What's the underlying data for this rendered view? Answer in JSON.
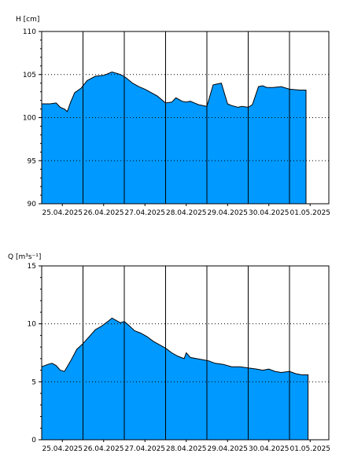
{
  "chart_data": [
    {
      "type": "area",
      "ylabel": "H [cm]",
      "ylim": [
        90,
        110
      ],
      "yticks": [
        90,
        95,
        100,
        105,
        110
      ],
      "x_tick_labels": [
        "25.04.2025",
        "26.04.2025",
        "27.04.2025",
        "28.04.2025",
        "29.04.2025",
        "30.04.2025",
        "01.05.2025"
      ],
      "grid": true,
      "fill_color": "#0099ff",
      "series": [
        {
          "x": [
            0,
            0.2,
            0.35,
            0.45,
            0.55,
            0.62,
            0.7,
            0.8,
            0.95,
            1.1,
            1.3,
            1.5,
            1.7,
            1.85,
            1.95,
            2.05,
            2.2,
            2.35,
            2.5,
            2.65,
            2.8,
            3.0,
            3.15,
            3.25,
            3.4,
            3.5,
            3.6,
            3.7,
            3.8,
            4.0,
            4.15,
            4.25,
            4.35,
            4.5,
            4.6,
            4.75,
            4.85,
            5.0,
            5.1,
            5.25,
            5.35,
            5.45,
            5.6,
            5.8,
            6.0,
            6.25,
            6.4
          ],
          "values": [
            101.6,
            101.6,
            101.7,
            101.2,
            101.0,
            100.7,
            101.8,
            102.9,
            103.4,
            104.3,
            104.8,
            104.9,
            105.3,
            105.1,
            104.9,
            104.6,
            104.0,
            103.6,
            103.3,
            102.9,
            102.5,
            101.7,
            101.8,
            102.3,
            101.9,
            101.8,
            101.9,
            101.7,
            101.5,
            101.3,
            103.8,
            103.9,
            104.0,
            101.6,
            101.4,
            101.2,
            101.3,
            101.2,
            101.5,
            103.6,
            103.7,
            103.5,
            103.5,
            103.6,
            103.3,
            103.2,
            103.2
          ]
        }
      ]
    },
    {
      "type": "area",
      "ylabel": "Q [m³s⁻¹]",
      "ylim": [
        0,
        15
      ],
      "yticks": [
        0,
        5,
        10,
        15
      ],
      "x_tick_labels": [
        "25.04.2025",
        "26.04.2025",
        "27.04.2025",
        "28.04.2025",
        "29.04.2025",
        "30.04.2025",
        "01.05.2025"
      ],
      "grid": true,
      "fill_color": "#0099ff",
      "series": [
        {
          "x": [
            0,
            0.15,
            0.25,
            0.35,
            0.45,
            0.55,
            0.7,
            0.85,
            1.0,
            1.15,
            1.3,
            1.45,
            1.6,
            1.7,
            1.8,
            1.9,
            2.0,
            2.1,
            2.25,
            2.4,
            2.55,
            2.7,
            2.85,
            3.0,
            3.15,
            3.3,
            3.45,
            3.5,
            3.6,
            3.75,
            3.9,
            4.05,
            4.2,
            4.4,
            4.6,
            4.8,
            5.0,
            5.2,
            5.35,
            5.5,
            5.65,
            5.8,
            6.0,
            6.15,
            6.3,
            6.45
          ],
          "values": [
            6.3,
            6.5,
            6.6,
            6.4,
            6.0,
            5.9,
            6.8,
            7.8,
            8.3,
            8.9,
            9.5,
            9.8,
            10.2,
            10.5,
            10.3,
            10.1,
            10.2,
            9.9,
            9.4,
            9.2,
            8.9,
            8.5,
            8.2,
            7.9,
            7.5,
            7.2,
            7.0,
            7.5,
            7.1,
            7.0,
            6.9,
            6.8,
            6.6,
            6.5,
            6.3,
            6.3,
            6.2,
            6.1,
            6.0,
            6.1,
            5.9,
            5.8,
            5.9,
            5.7,
            5.6,
            5.6
          ]
        }
      ]
    }
  ]
}
